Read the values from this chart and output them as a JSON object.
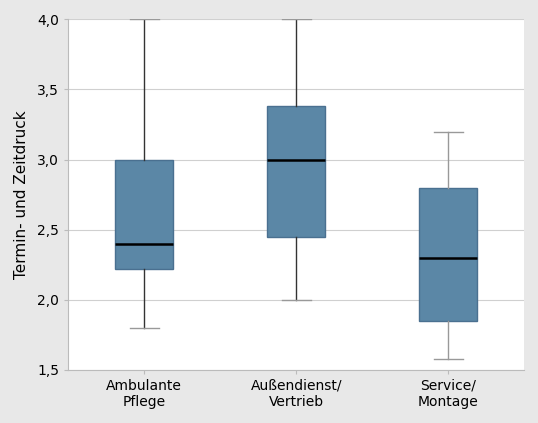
{
  "groups": [
    "Ambulante\nPflege",
    "Außendienst/\nVertrieb",
    "Service/\nMontage"
  ],
  "box_data": [
    {
      "whislo": 1.8,
      "q1": 2.22,
      "med": 2.4,
      "q3": 3.0,
      "whishi": 4.0
    },
    {
      "whislo": 2.0,
      "q1": 2.45,
      "med": 3.0,
      "q3": 3.38,
      "whishi": 4.0
    },
    {
      "whislo": 1.58,
      "q1": 1.85,
      "med": 2.3,
      "q3": 2.8,
      "whishi": 3.2
    }
  ],
  "box_color": "#5b87a6",
  "box_edge_color": "#4a7090",
  "median_color": "#000000",
  "whisker_color_dark": "#333333",
  "whisker_color_light": "#999999",
  "cap_color": "#999999",
  "ylabel": "Termin- und Zeitdruck",
  "ylim": [
    1.5,
    4.0
  ],
  "yticks": [
    1.5,
    2.0,
    2.5,
    3.0,
    3.5,
    4.0
  ],
  "ytick_labels": [
    "1,5",
    "2,0",
    "2,5",
    "3,0",
    "3,5",
    "4,0"
  ],
  "background_color": "#e8e8e8",
  "plot_background": "#ffffff",
  "box_width": 0.38,
  "linewidth": 1.0,
  "median_linewidth": 1.8,
  "whisker_linewidth": 1.0
}
